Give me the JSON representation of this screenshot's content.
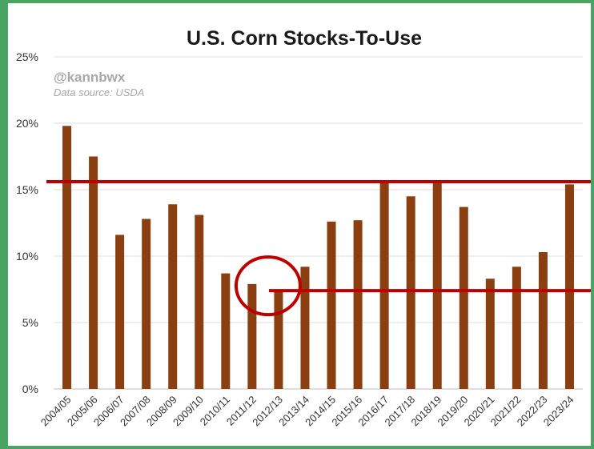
{
  "chart_data": {
    "type": "bar",
    "title": "U.S. Corn Stocks-To-Use",
    "watermark": "@kannbwx",
    "source": "Data source: USDA",
    "categories": [
      "2004/05",
      "2005/06",
      "2006/07",
      "2007/08",
      "2008/09",
      "2009/10",
      "2010/11",
      "2011/12",
      "2012/13",
      "2013/14",
      "2014/15",
      "2015/16",
      "2016/17",
      "2017/18",
      "2018/19",
      "2019/20",
      "2020/21",
      "2021/22",
      "2022/23",
      "2023/24"
    ],
    "values": [
      19.8,
      17.5,
      11.6,
      12.8,
      13.9,
      13.1,
      8.7,
      7.9,
      7.4,
      9.2,
      12.6,
      12.7,
      15.7,
      14.5,
      15.5,
      13.7,
      8.3,
      9.2,
      10.3,
      15.4
    ],
    "ylim": [
      0,
      25
    ],
    "yticks": [
      "0%",
      "5%",
      "10%",
      "15%",
      "20%",
      "25%"
    ],
    "grid": true,
    "bar_color": "#8b3f11",
    "annotations": {
      "color": "#c00000",
      "upper_line_value": 15.6,
      "lower_line_value": 7.4,
      "circled_category": "2012/13"
    }
  }
}
